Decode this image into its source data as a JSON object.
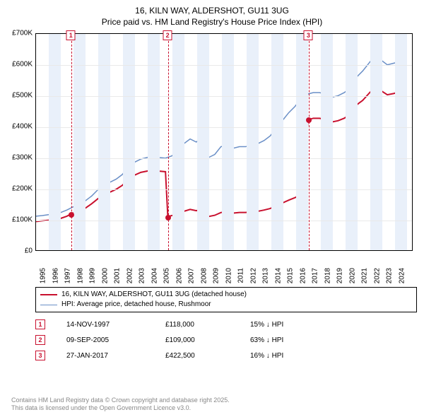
{
  "title": {
    "line1": "16, KILN WAY, ALDERSHOT, GU11 3UG",
    "line2": "Price paid vs. HM Land Registry's House Price Index (HPI)"
  },
  "chart": {
    "type": "line",
    "background_color": "#ffffff",
    "grid_color": "#e9e9e9",
    "shade_color": "#e9f0fa",
    "x_range": [
      1995,
      2025.5
    ],
    "y_range": [
      0,
      700
    ],
    "y_ticks": [
      0,
      100,
      200,
      300,
      400,
      500,
      600,
      700
    ],
    "y_tick_labels": [
      "£0",
      "£100K",
      "£200K",
      "£300K",
      "£400K",
      "£500K",
      "£600K",
      "£700K"
    ],
    "x_ticks": [
      1995,
      1996,
      1997,
      1998,
      1999,
      2000,
      2001,
      2002,
      2003,
      2004,
      2005,
      2006,
      2007,
      2008,
      2009,
      2010,
      2011,
      2012,
      2013,
      2014,
      2015,
      2016,
      2017,
      2018,
      2019,
      2020,
      2021,
      2022,
      2023,
      2024
    ],
    "x_tick_labels": [
      "1995",
      "1996",
      "1997",
      "1998",
      "1999",
      "2000",
      "2001",
      "2002",
      "2003",
      "2004",
      "2005",
      "2006",
      "2007",
      "2008",
      "2009",
      "2010",
      "2011",
      "2012",
      "2013",
      "2014",
      "2015",
      "2016",
      "2017",
      "2018",
      "2019",
      "2020",
      "2021",
      "2022",
      "2023",
      "2024"
    ],
    "alt_shade_start": 1996,
    "series": {
      "hpi": {
        "color": "#6a8fc7",
        "width": 1.5,
        "points": [
          [
            1995,
            110
          ],
          [
            1995.5,
            112
          ],
          [
            1996,
            115
          ],
          [
            1996.5,
            118
          ],
          [
            1997,
            122
          ],
          [
            1997.5,
            130
          ],
          [
            1998,
            140
          ],
          [
            1998.5,
            150
          ],
          [
            1999,
            160
          ],
          [
            1999.5,
            175
          ],
          [
            2000,
            195
          ],
          [
            2000.5,
            210
          ],
          [
            2001,
            220
          ],
          [
            2001.5,
            230
          ],
          [
            2002,
            245
          ],
          [
            2002.5,
            270
          ],
          [
            2003,
            285
          ],
          [
            2003.5,
            295
          ],
          [
            2004,
            300
          ],
          [
            2004.5,
            305
          ],
          [
            2005,
            300
          ],
          [
            2005.5,
            298
          ],
          [
            2006,
            305
          ],
          [
            2006.5,
            320
          ],
          [
            2007,
            345
          ],
          [
            2007.5,
            360
          ],
          [
            2008,
            350
          ],
          [
            2008.3,
            360
          ],
          [
            2008.7,
            315
          ],
          [
            2009,
            300
          ],
          [
            2009.5,
            310
          ],
          [
            2010,
            335
          ],
          [
            2010.5,
            340
          ],
          [
            2011,
            330
          ],
          [
            2011.5,
            335
          ],
          [
            2012,
            335
          ],
          [
            2012.5,
            340
          ],
          [
            2013,
            345
          ],
          [
            2013.5,
            355
          ],
          [
            2014,
            370
          ],
          [
            2014.5,
            395
          ],
          [
            2015,
            420
          ],
          [
            2015.5,
            445
          ],
          [
            2016,
            465
          ],
          [
            2016.5,
            490
          ],
          [
            2017,
            505
          ],
          [
            2017.5,
            510
          ],
          [
            2018,
            510
          ],
          [
            2018.5,
            505
          ],
          [
            2019,
            495
          ],
          [
            2019.5,
            500
          ],
          [
            2020,
            510
          ],
          [
            2020.5,
            525
          ],
          [
            2021,
            560
          ],
          [
            2021.5,
            580
          ],
          [
            2022,
            605
          ],
          [
            2022.5,
            630
          ],
          [
            2023,
            615
          ],
          [
            2023.5,
            600
          ],
          [
            2024,
            605
          ],
          [
            2024.5,
            610
          ],
          [
            2025,
            605
          ]
        ]
      },
      "price_paid": {
        "color": "#c8102e",
        "width": 2,
        "points": [
          [
            1995,
            93
          ],
          [
            1995.5,
            95
          ],
          [
            1996,
            97
          ],
          [
            1996.5,
            100
          ],
          [
            1997,
            103
          ],
          [
            1997.5,
            110
          ],
          [
            1997.87,
            118
          ],
          [
            1998,
            120
          ],
          [
            1998.5,
            128
          ],
          [
            1999,
            136
          ],
          [
            1999.5,
            150
          ],
          [
            2000,
            166
          ],
          [
            2000.5,
            180
          ],
          [
            2001,
            188
          ],
          [
            2001.5,
            197
          ],
          [
            2002,
            210
          ],
          [
            2002.5,
            230
          ],
          [
            2003,
            243
          ],
          [
            2003.5,
            252
          ],
          [
            2004,
            256
          ],
          [
            2004.5,
            260
          ],
          [
            2005,
            256
          ],
          [
            2005.5,
            254
          ],
          [
            2005.69,
            109
          ],
          [
            2005.7,
            109
          ],
          [
            2006,
            112
          ],
          [
            2006.5,
            117
          ],
          [
            2007,
            126
          ],
          [
            2007.5,
            132
          ],
          [
            2008,
            128
          ],
          [
            2008.3,
            131
          ],
          [
            2008.7,
            115
          ],
          [
            2009,
            109
          ],
          [
            2009.5,
            113
          ],
          [
            2010,
            122
          ],
          [
            2010.5,
            124
          ],
          [
            2011,
            120
          ],
          [
            2011.5,
            122
          ],
          [
            2012,
            122
          ],
          [
            2012.5,
            124
          ],
          [
            2013,
            126
          ],
          [
            2013.5,
            130
          ],
          [
            2014,
            135
          ],
          [
            2014.5,
            144
          ],
          [
            2015,
            153
          ],
          [
            2015.5,
            162
          ],
          [
            2016,
            170
          ],
          [
            2016.5,
            179
          ],
          [
            2017.07,
            422.5
          ],
          [
            2017.08,
            422.5
          ],
          [
            2017.5,
            427
          ],
          [
            2018,
            427
          ],
          [
            2018.5,
            423
          ],
          [
            2019,
            415
          ],
          [
            2019.5,
            419
          ],
          [
            2020,
            427
          ],
          [
            2020.5,
            440
          ],
          [
            2021,
            470
          ],
          [
            2021.5,
            485
          ],
          [
            2022,
            507
          ],
          [
            2022.5,
            528
          ],
          [
            2023,
            516
          ],
          [
            2023.5,
            503
          ],
          [
            2024,
            507
          ],
          [
            2024.5,
            512
          ],
          [
            2025,
            507
          ]
        ]
      }
    },
    "markers": [
      {
        "n": "1",
        "x": 1997.87,
        "y": 118
      },
      {
        "n": "2",
        "x": 2005.69,
        "y": 109
      },
      {
        "n": "3",
        "x": 2017.07,
        "y": 422.5
      }
    ]
  },
  "legend": {
    "items": [
      {
        "color": "#c8102e",
        "width": 2,
        "label": "16, KILN WAY, ALDERSHOT, GU11 3UG (detached house)"
      },
      {
        "color": "#6a8fc7",
        "width": 1.5,
        "label": "HPI: Average price, detached house, Rushmoor"
      }
    ]
  },
  "events": [
    {
      "n": "1",
      "date": "14-NOV-1997",
      "price": "£118,000",
      "delta": "15% ↓ HPI"
    },
    {
      "n": "2",
      "date": "09-SEP-2005",
      "price": "£109,000",
      "delta": "63% ↓ HPI"
    },
    {
      "n": "3",
      "date": "27-JAN-2017",
      "price": "£422,500",
      "delta": "16% ↓ HPI"
    }
  ],
  "footer": {
    "line1": "Contains HM Land Registry data © Crown copyright and database right 2025.",
    "line2": "This data is licensed under the Open Government Licence v3.0."
  }
}
